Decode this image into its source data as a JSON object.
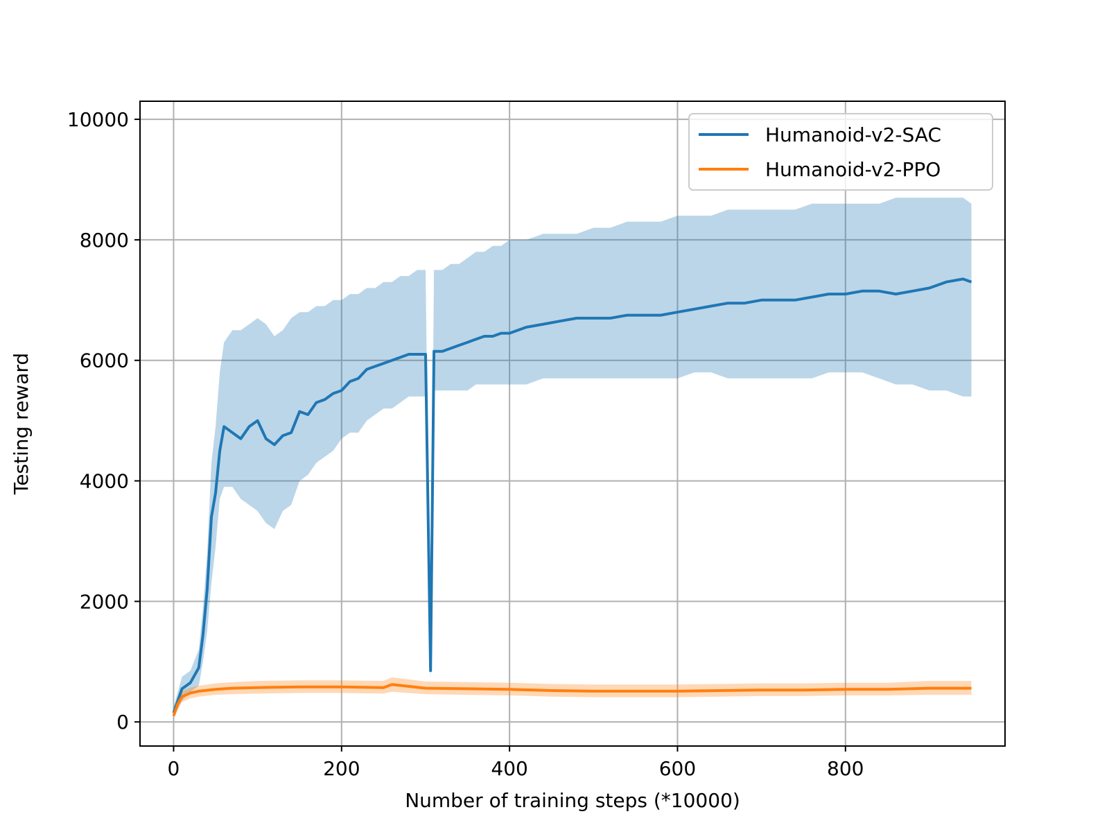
{
  "chart_data": {
    "type": "line",
    "title": "",
    "xlabel": "Number of training steps (*10000)",
    "ylabel": "Testing reward",
    "xlim": [
      -40,
      990
    ],
    "ylim": [
      -400,
      10300
    ],
    "grid": true,
    "legend_position": "top-right",
    "xticks": [
      0,
      200,
      400,
      600,
      800
    ],
    "xtick_labels": [
      "0",
      "200",
      "400",
      "600",
      "800"
    ],
    "yticks": [
      0,
      2000,
      4000,
      6000,
      8000,
      10000
    ],
    "ytick_labels": [
      "0",
      "2000",
      "4000",
      "6000",
      "8000",
      "10000"
    ],
    "series": [
      {
        "name": "Humanoid-v2-SAC",
        "color": "#1f77b4",
        "band": "min-max shaded region",
        "x": [
          0,
          10,
          20,
          30,
          35,
          40,
          45,
          50,
          55,
          60,
          70,
          80,
          90,
          100,
          110,
          120,
          130,
          140,
          150,
          160,
          170,
          180,
          190,
          200,
          210,
          220,
          230,
          240,
          250,
          260,
          270,
          280,
          290,
          300,
          306,
          310,
          320,
          330,
          340,
          350,
          360,
          370,
          380,
          390,
          400,
          420,
          440,
          460,
          480,
          500,
          520,
          540,
          560,
          580,
          600,
          620,
          640,
          660,
          680,
          700,
          720,
          740,
          760,
          780,
          800,
          820,
          840,
          860,
          880,
          900,
          920,
          940,
          950
        ],
        "y": [
          150,
          550,
          650,
          900,
          1450,
          2200,
          3400,
          3800,
          4500,
          4900,
          4800,
          4700,
          4900,
          5000,
          4700,
          4600,
          4750,
          4800,
          5150,
          5100,
          5300,
          5350,
          5450,
          5500,
          5650,
          5700,
          5850,
          5900,
          5950,
          6000,
          6050,
          6100,
          6100,
          6100,
          850,
          6150,
          6150,
          6200,
          6250,
          6300,
          6350,
          6400,
          6400,
          6450,
          6450,
          6550,
          6600,
          6650,
          6700,
          6700,
          6700,
          6750,
          6750,
          6750,
          6800,
          6850,
          6900,
          6950,
          6950,
          7000,
          7000,
          7000,
          7050,
          7100,
          7100,
          7150,
          7150,
          7100,
          7150,
          7200,
          7300,
          7350,
          7300
        ],
        "y_low": [
          100,
          350,
          500,
          600,
          1000,
          1500,
          2300,
          2900,
          3700,
          3900,
          3900,
          3700,
          3600,
          3500,
          3300,
          3200,
          3500,
          3600,
          4000,
          4100,
          4300,
          4400,
          4500,
          4700,
          4800,
          4800,
          5000,
          5100,
          5200,
          5200,
          5300,
          5400,
          5400,
          5400,
          700,
          5500,
          5500,
          5500,
          5500,
          5500,
          5600,
          5600,
          5600,
          5600,
          5600,
          5600,
          5700,
          5700,
          5700,
          5700,
          5700,
          5700,
          5700,
          5700,
          5700,
          5800,
          5800,
          5700,
          5700,
          5700,
          5700,
          5700,
          5700,
          5800,
          5800,
          5800,
          5700,
          5600,
          5600,
          5500,
          5500,
          5400,
          5400
        ],
        "y_high": [
          250,
          750,
          850,
          1200,
          1900,
          2800,
          4300,
          4900,
          5800,
          6300,
          6500,
          6500,
          6600,
          6700,
          6600,
          6400,
          6500,
          6700,
          6800,
          6800,
          6900,
          6900,
          7000,
          7000,
          7100,
          7100,
          7200,
          7200,
          7300,
          7300,
          7400,
          7400,
          7500,
          7500,
          900,
          7500,
          7500,
          7600,
          7600,
          7700,
          7800,
          7800,
          7900,
          7900,
          8000,
          8000,
          8100,
          8100,
          8100,
          8200,
          8200,
          8300,
          8300,
          8300,
          8400,
          8400,
          8400,
          8500,
          8500,
          8500,
          8500,
          8500,
          8600,
          8600,
          8600,
          8600,
          8600,
          8700,
          8700,
          8700,
          8700,
          8700,
          8600
        ]
      },
      {
        "name": "Humanoid-v2-PPO",
        "color": "#ff7f0e",
        "band": "min-max shaded region",
        "x": [
          0,
          5,
          10,
          20,
          30,
          50,
          70,
          100,
          150,
          200,
          250,
          260,
          300,
          350,
          400,
          450,
          500,
          550,
          600,
          650,
          700,
          750,
          800,
          850,
          900,
          950
        ],
        "y": [
          100,
          300,
          420,
          480,
          510,
          540,
          560,
          570,
          580,
          580,
          570,
          620,
          560,
          550,
          540,
          520,
          510,
          510,
          510,
          520,
          530,
          530,
          540,
          540,
          560,
          560
        ],
        "y_low": [
          60,
          200,
          330,
          390,
          420,
          450,
          460,
          470,
          480,
          480,
          470,
          500,
          460,
          450,
          440,
          420,
          410,
          410,
          410,
          420,
          430,
          430,
          440,
          440,
          450,
          450
        ],
        "y_high": [
          140,
          400,
          510,
          570,
          600,
          640,
          660,
          680,
          690,
          690,
          680,
          740,
          670,
          660,
          650,
          630,
          620,
          620,
          620,
          630,
          640,
          640,
          650,
          650,
          680,
          680
        ]
      }
    ]
  }
}
